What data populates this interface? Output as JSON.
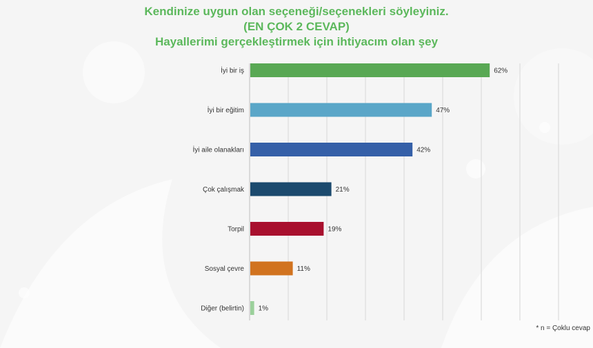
{
  "titles": [
    "Kendinize uygun olan seçeneği/seçenekleri söyleyiniz.",
    "(EN ÇOK 2 CEVAP)",
    "Hayallerimi gerçekleştirmek için ihtiyacım olan şey"
  ],
  "note": "* n = Çoklu cevap",
  "chart_data": {
    "type": "bar",
    "orientation": "horizontal",
    "categories": [
      "İyi bir iş",
      "İyi bir eğitim",
      "İyi aile olanakları",
      "Çok çalışmak",
      "Torpil",
      "Sosyal çevre",
      "Diğer (belirtin)"
    ],
    "values": [
      62,
      47,
      42,
      21,
      19,
      11,
      1
    ],
    "value_labels": [
      "62%",
      "47%",
      "42%",
      "21%",
      "19%",
      "11%",
      "1%"
    ],
    "colors": [
      "#59a854",
      "#5aa6c8",
      "#3560a8",
      "#1c4a6e",
      "#a8102e",
      "#d1731f",
      "#9bd09b"
    ],
    "xlim": [
      0,
      100
    ],
    "grid": true,
    "legend": "none"
  }
}
